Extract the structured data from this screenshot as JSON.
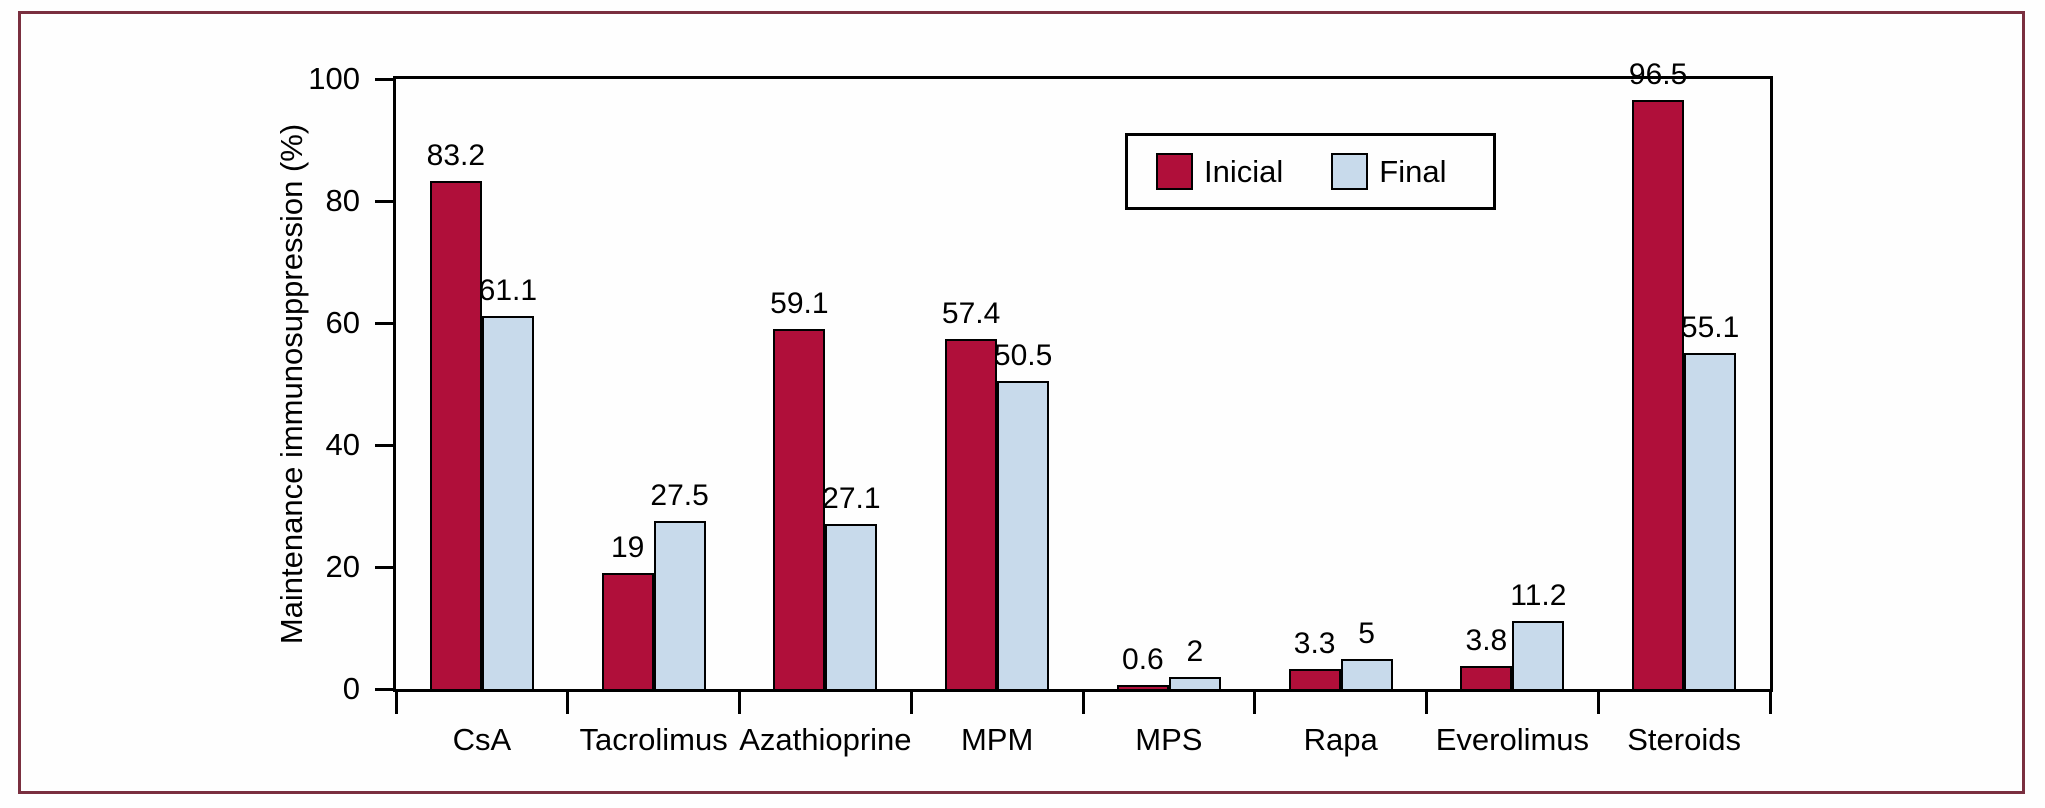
{
  "colors": {
    "frame_border": "#7A2F3F",
    "axis": "#000000",
    "background": "#FEFEFE",
    "inicial_red": "#B00F3A",
    "final_blue": "#C8DAEB"
  },
  "chart_data": {
    "type": "bar",
    "title": "",
    "xlabel": "",
    "ylabel": "Maintenance immunosuppression (%)",
    "ylim": [
      0,
      100
    ],
    "yticks": [
      0,
      20,
      40,
      60,
      80,
      100
    ],
    "grid": false,
    "legend_position": "top-right-inside",
    "categories": [
      "CsA",
      "Tacrolimus",
      "Azathioprine",
      "MPM",
      "MPS",
      "Rapa",
      "Everolimus",
      "Steroids"
    ],
    "series": [
      {
        "name": "Inicial",
        "color": "#B00F3A",
        "values": [
          83.2,
          19,
          59.1,
          57.4,
          0.6,
          3.3,
          3.8,
          96.5
        ],
        "labels": [
          "83.2",
          "19",
          "59.1",
          "57.4",
          "0.6",
          "3.3",
          "3.8",
          "96.5"
        ]
      },
      {
        "name": "Final",
        "color": "#C8DAEB",
        "values": [
          61.1,
          27.5,
          27.1,
          50.5,
          2,
          5,
          11.2,
          55.1
        ],
        "labels": [
          "61.1",
          "27.5",
          "27.1",
          "50.5",
          "2",
          "5",
          "11.2",
          "55.1"
        ]
      }
    ]
  }
}
